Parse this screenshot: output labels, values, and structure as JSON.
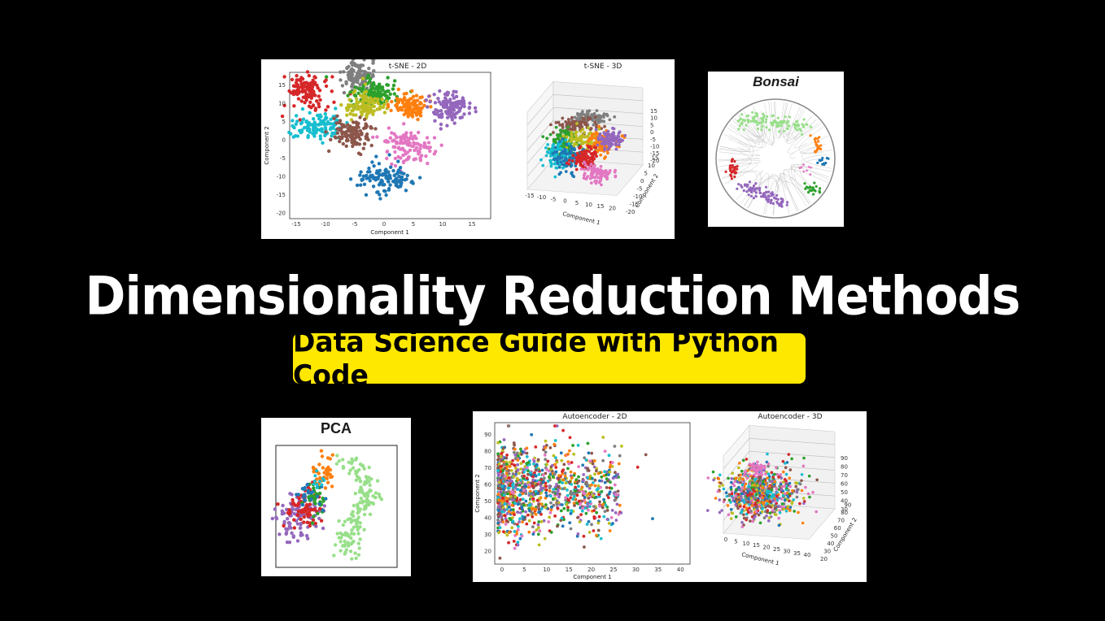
{
  "headline": "Dimensionality Reduction Methods",
  "subtitle": "Data Science Guide with Python Code",
  "colors": {
    "background": "#000000",
    "accent": "#ffe800"
  },
  "palette": [
    "#1f77b4",
    "#ff7f0e",
    "#2ca02c",
    "#d62728",
    "#9467bd",
    "#8c564b",
    "#e377c2",
    "#7f7f7f",
    "#bcbd22",
    "#17becf"
  ],
  "tsne": {
    "title2d": "t-SNE - 2D",
    "title3d": "t-SNE - 3D",
    "xlabel": "Component 1",
    "ylabel": "Component 2",
    "xticks": [
      "-15",
      "-10",
      "-5",
      "0",
      "5",
      "10",
      "15"
    ],
    "yticks": [
      "15",
      "10",
      "5",
      "0",
      "-5",
      "-10",
      "-15",
      "-20"
    ],
    "ticks3d_z": [
      "15",
      "10",
      "5",
      "0",
      "-5",
      "-10",
      "-15",
      "-20"
    ],
    "ticks3d_x": [
      "-15",
      "-10",
      "-5",
      "0",
      "5",
      "10",
      "15",
      "20"
    ],
    "ticks3d_y": [
      "-20",
      "-15",
      "-10",
      "-5",
      "0",
      "5",
      "10",
      "15"
    ],
    "xlabel3d": "Component 1",
    "ylabel3d": "Component 2"
  },
  "bonsai": {
    "title": "Bonsai"
  },
  "pca": {
    "title": "PCA"
  },
  "autoencoder": {
    "title2d": "Autoencoder - 2D",
    "title3d": "Autoencoder - 3D",
    "xlabel": "Component 1",
    "ylabel": "Component 2",
    "xticks": [
      "0",
      "5",
      "10",
      "15",
      "20",
      "25",
      "30",
      "35",
      "40"
    ],
    "yticks": [
      "90",
      "80",
      "70",
      "60",
      "50",
      "40",
      "30",
      "20"
    ],
    "ticks3d_z": [
      "90",
      "80",
      "70",
      "60",
      "50",
      "40",
      "30"
    ],
    "ticks3d_x": [
      "0",
      "5",
      "10",
      "15",
      "20",
      "25",
      "30",
      "35",
      "40"
    ],
    "ticks3d_y": [
      "20",
      "30",
      "40",
      "50",
      "60",
      "70",
      "80",
      "90"
    ],
    "xlabel3d": "Component 1",
    "ylabel3d": "Component 2"
  }
}
